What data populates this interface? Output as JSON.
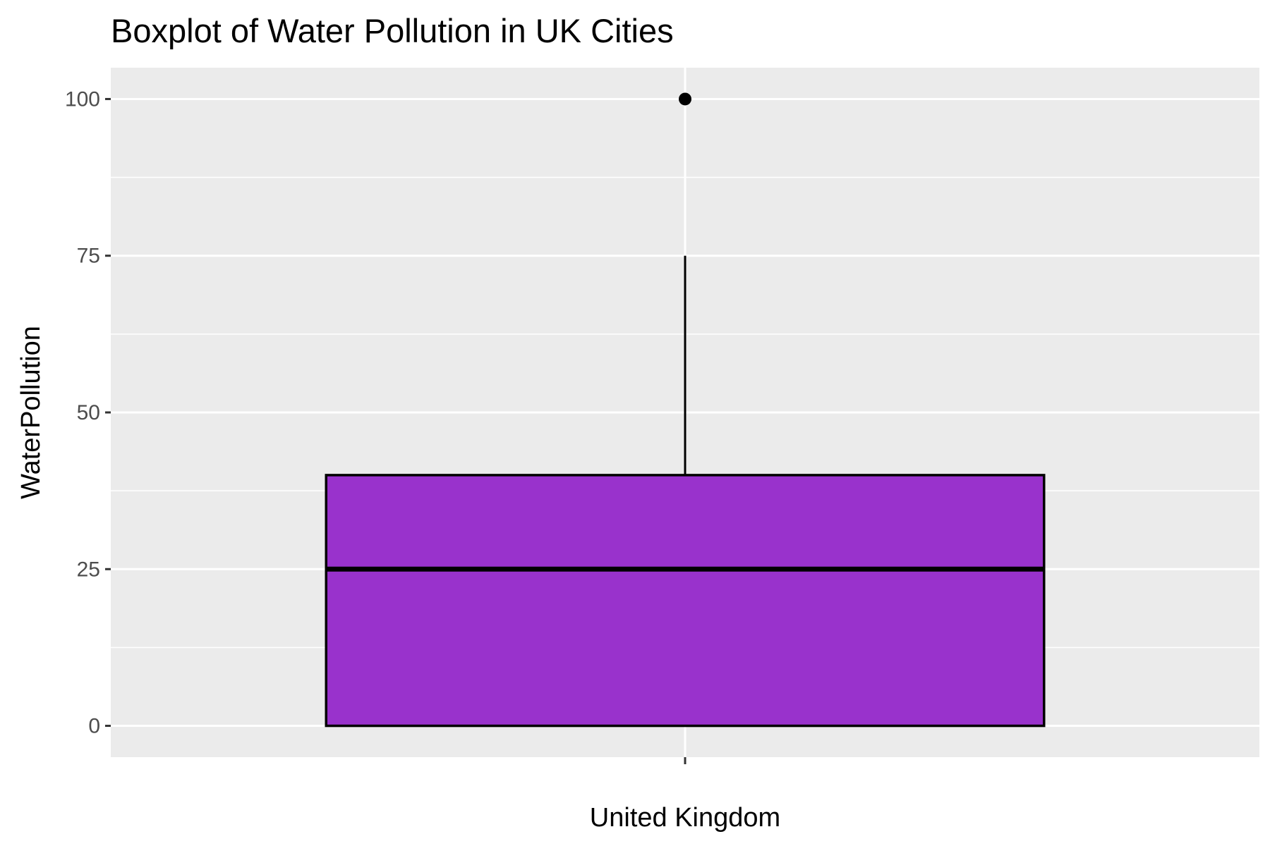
{
  "chart_data": {
    "type": "boxplot",
    "title": "Boxplot of Water Pollution in UK Cities",
    "xlabel": "",
    "ylabel": "WaterPollution",
    "categories": [
      "United Kingdom"
    ],
    "boxes": [
      {
        "category": "United Kingdom",
        "whisker_low": 0,
        "q1": 0,
        "median": 25,
        "q3": 40,
        "whisker_high": 75,
        "outliers": [
          100
        ]
      }
    ],
    "y_ticks": [
      0,
      25,
      50,
      75,
      100
    ],
    "ylim": [
      -5,
      105
    ],
    "grid": true,
    "colors": {
      "box_fill": "#9932CC",
      "panel_background": "#EBEBEB",
      "grid": "#FFFFFF",
      "outline": "#000000"
    }
  }
}
